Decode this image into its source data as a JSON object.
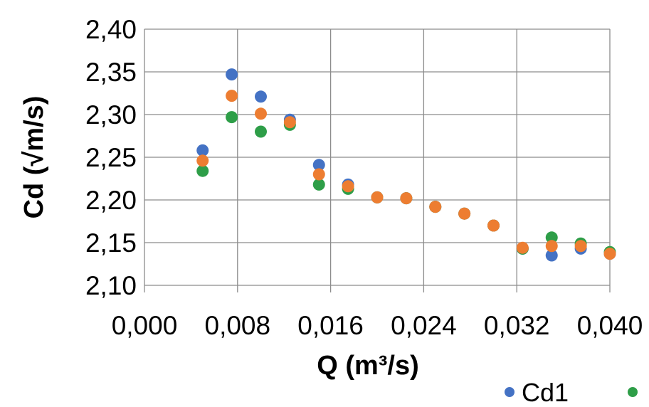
{
  "chart_data": {
    "type": "scatter",
    "title": "",
    "xlabel": "Q (m³/s)",
    "ylabel": "Cd (√m/s)",
    "xlim": [
      0,
      0.04
    ],
    "ylim": [
      2.1,
      2.4
    ],
    "xticks": [
      "0,000",
      "0,008",
      "0,016",
      "0,024",
      "0,032",
      "0,040"
    ],
    "yticks": [
      "2,10",
      "2,15",
      "2,20",
      "2,25",
      "2,30",
      "2,35",
      "2,40"
    ],
    "grid": true,
    "legend_position": "bottom-right",
    "series": [
      {
        "name": "Cd1",
        "color": "#4472C4",
        "points": [
          [
            0.005,
            2.258
          ],
          [
            0.0075,
            2.347
          ],
          [
            0.01,
            2.321
          ],
          [
            0.0125,
            2.294
          ],
          [
            0.015,
            2.241
          ],
          [
            0.0175,
            2.218
          ],
          [
            0.02,
            2.203
          ],
          [
            0.0225,
            2.202
          ],
          [
            0.025,
            2.192
          ],
          [
            0.0275,
            2.184
          ],
          [
            0.03,
            2.17
          ],
          [
            0.0325,
            2.143
          ],
          [
            0.035,
            2.135
          ],
          [
            0.0375,
            2.143
          ],
          [
            0.04,
            2.137
          ]
        ]
      },
      {
        "color": "#2E9E48",
        "points": [
          [
            0.005,
            2.234
          ],
          [
            0.0075,
            2.297
          ],
          [
            0.01,
            2.28
          ],
          [
            0.0125,
            2.288
          ],
          [
            0.015,
            2.218
          ],
          [
            0.0175,
            2.213
          ],
          [
            0.02,
            2.203
          ],
          [
            0.0225,
            2.202
          ],
          [
            0.025,
            2.192
          ],
          [
            0.0275,
            2.184
          ],
          [
            0.03,
            2.17
          ],
          [
            0.0325,
            2.143
          ],
          [
            0.035,
            2.156
          ],
          [
            0.0375,
            2.149
          ],
          [
            0.04,
            2.139
          ]
        ]
      },
      {
        "color": "#ED7D31",
        "points": [
          [
            0.005,
            2.246
          ],
          [
            0.0075,
            2.322
          ],
          [
            0.01,
            2.301
          ],
          [
            0.0125,
            2.291
          ],
          [
            0.015,
            2.23
          ],
          [
            0.0175,
            2.216
          ],
          [
            0.02,
            2.203
          ],
          [
            0.0225,
            2.202
          ],
          [
            0.025,
            2.192
          ],
          [
            0.0275,
            2.184
          ],
          [
            0.03,
            2.17
          ],
          [
            0.0325,
            2.144
          ],
          [
            0.035,
            2.146
          ],
          [
            0.0375,
            2.146
          ],
          [
            0.04,
            2.137
          ]
        ]
      }
    ]
  }
}
